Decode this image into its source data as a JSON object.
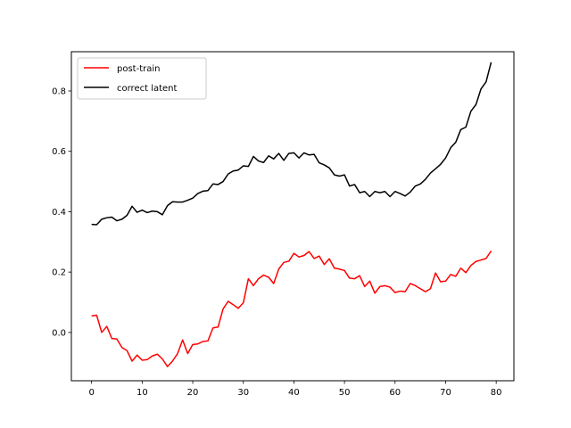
{
  "chart_data": {
    "type": "line",
    "title": "",
    "xlabel": "",
    "ylabel": "",
    "xlim": [
      -4,
      83.5
    ],
    "ylim": [
      -0.16,
      0.93
    ],
    "xticks": [
      0,
      10,
      20,
      30,
      40,
      50,
      60,
      70,
      80
    ],
    "yticks": [
      0.0,
      0.2,
      0.4,
      0.6,
      0.8
    ],
    "ytick_labels": [
      "0.0",
      "0.2",
      "0.4",
      "0.6",
      "0.8"
    ],
    "grid": false,
    "legend": "top-left",
    "x": [
      0,
      1,
      2,
      3,
      4,
      5,
      6,
      7,
      8,
      9,
      10,
      11,
      12,
      13,
      14,
      15,
      16,
      17,
      18,
      19,
      20,
      21,
      22,
      23,
      24,
      25,
      26,
      27,
      28,
      29,
      30,
      31,
      32,
      33,
      34,
      35,
      36,
      37,
      38,
      39,
      40,
      41,
      42,
      43,
      44,
      45,
      46,
      47,
      48,
      49,
      50,
      51,
      52,
      53,
      54,
      55,
      56,
      57,
      58,
      59,
      60,
      61,
      62,
      63,
      64,
      65,
      66,
      67,
      68,
      69,
      70,
      71,
      72,
      73,
      74,
      75,
      76,
      77,
      78,
      79
    ],
    "series": [
      {
        "name": "post-train",
        "color": "#ff0000",
        "values": [
          0.055,
          0.057,
          0.0,
          0.02,
          -0.02,
          -0.022,
          -0.05,
          -0.06,
          -0.095,
          -0.075,
          -0.092,
          -0.09,
          -0.078,
          -0.072,
          -0.088,
          -0.113,
          -0.095,
          -0.07,
          -0.025,
          -0.07,
          -0.04,
          -0.038,
          -0.03,
          -0.028,
          0.015,
          0.018,
          0.078,
          0.103,
          0.092,
          0.08,
          0.098,
          0.178,
          0.155,
          0.178,
          0.19,
          0.183,
          0.162,
          0.21,
          0.232,
          0.236,
          0.262,
          0.25,
          0.255,
          0.268,
          0.245,
          0.253,
          0.225,
          0.244,
          0.213,
          0.21,
          0.205,
          0.18,
          0.178,
          0.188,
          0.152,
          0.17,
          0.13,
          0.152,
          0.155,
          0.15,
          0.132,
          0.137,
          0.135,
          0.162,
          0.155,
          0.145,
          0.135,
          0.145,
          0.197,
          0.168,
          0.17,
          0.192,
          0.186,
          0.213,
          0.198,
          0.222,
          0.235,
          0.24,
          0.245,
          0.27
        ]
      },
      {
        "name": "correct latent",
        "color": "#000000",
        "values": [
          0.358,
          0.357,
          0.375,
          0.38,
          0.382,
          0.37,
          0.375,
          0.388,
          0.418,
          0.398,
          0.405,
          0.397,
          0.402,
          0.4,
          0.39,
          0.42,
          0.433,
          0.432,
          0.432,
          0.438,
          0.445,
          0.46,
          0.468,
          0.47,
          0.492,
          0.49,
          0.5,
          0.525,
          0.535,
          0.538,
          0.552,
          0.55,
          0.583,
          0.568,
          0.563,
          0.585,
          0.575,
          0.593,
          0.57,
          0.593,
          0.595,
          0.578,
          0.595,
          0.588,
          0.59,
          0.562,
          0.555,
          0.545,
          0.522,
          0.518,
          0.522,
          0.485,
          0.49,
          0.463,
          0.467,
          0.45,
          0.467,
          0.463,
          0.467,
          0.45,
          0.467,
          0.46,
          0.452,
          0.465,
          0.485,
          0.492,
          0.507,
          0.528,
          0.542,
          0.557,
          0.578,
          0.612,
          0.63,
          0.672,
          0.68,
          0.733,
          0.755,
          0.807,
          0.83,
          0.895
        ]
      }
    ]
  }
}
